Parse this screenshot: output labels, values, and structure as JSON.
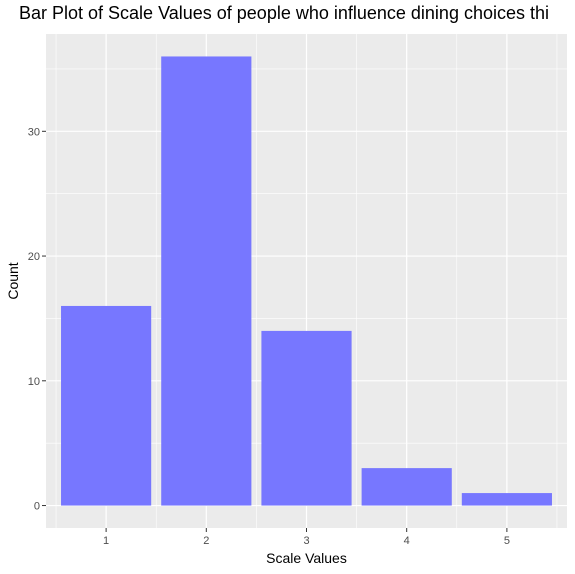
{
  "chart_data": {
    "type": "bar",
    "title": "Bar Plot of Scale Values of people who influence dining choices thi",
    "xlabel": "Scale Values",
    "ylabel": "Count",
    "categories": [
      "1",
      "2",
      "3",
      "4",
      "5"
    ],
    "values": [
      16,
      36,
      14,
      3,
      1
    ],
    "ylim": [
      -1.8,
      37.8
    ],
    "yticks": [
      0,
      10,
      20,
      30
    ],
    "ytick_labels": [
      "0",
      "10",
      "20",
      "30"
    ],
    "grid": true,
    "bar_color": "#7777FF",
    "panel_color": "#EBEBEB",
    "grid_color": "#FFFFFF"
  }
}
